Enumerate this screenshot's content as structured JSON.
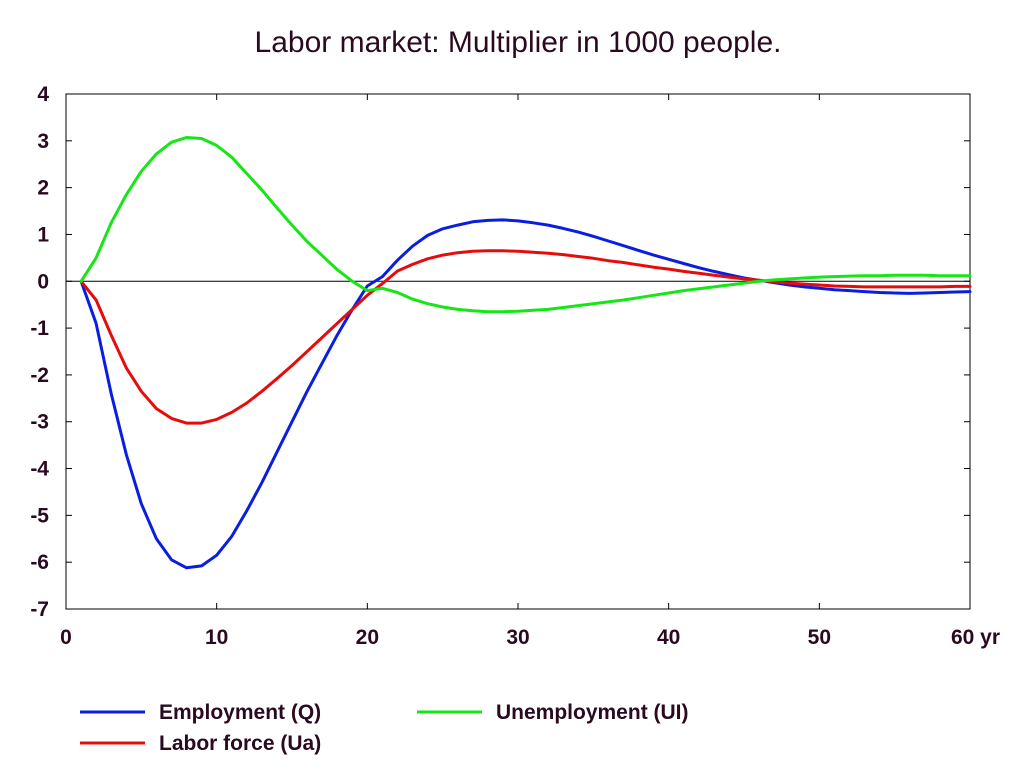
{
  "chart_data": {
    "type": "line",
    "title": "Labor market: Multiplier in 1000 people.",
    "xlabel": "",
    "ylabel": "",
    "xlim": [
      0,
      60
    ],
    "ylim": [
      -7,
      4
    ],
    "x_ticks": [
      0,
      10,
      20,
      30,
      40,
      50,
      60
    ],
    "x_tick_labels": [
      "0",
      "10",
      "20",
      "30",
      "40",
      "50",
      "60 yr"
    ],
    "y_ticks": [
      4,
      3,
      2,
      1,
      0,
      -1,
      -2,
      -3,
      -4,
      -5,
      -6,
      -7
    ],
    "y_tick_labels": [
      "4",
      "3",
      "2",
      "1",
      "0",
      "-1",
      "-2",
      "-3",
      "-4",
      "-5",
      "-6",
      "-7"
    ],
    "grid": false,
    "zero_line": true,
    "legend_position": "bottom",
    "x": [
      1,
      2,
      3,
      4,
      5,
      6,
      7,
      8,
      9,
      10,
      11,
      12,
      13,
      14,
      15,
      16,
      17,
      18,
      19,
      20,
      21,
      22,
      23,
      24,
      25,
      26,
      27,
      28,
      29,
      30,
      31,
      32,
      33,
      34,
      35,
      36,
      37,
      38,
      39,
      40,
      41,
      42,
      43,
      44,
      45,
      46,
      47,
      48,
      49,
      50,
      51,
      52,
      53,
      54,
      55,
      56,
      57,
      58,
      59,
      60
    ],
    "series": [
      {
        "name": "Employment (Q)",
        "color": "#0a1ee0",
        "values": [
          0,
          -0.9,
          -2.4,
          -3.7,
          -4.75,
          -5.5,
          -5.95,
          -6.12,
          -6.08,
          -5.85,
          -5.45,
          -4.9,
          -4.3,
          -3.65,
          -3.0,
          -2.35,
          -1.75,
          -1.15,
          -0.6,
          -0.1,
          0.1,
          0.45,
          0.75,
          0.98,
          1.12,
          1.2,
          1.27,
          1.3,
          1.31,
          1.29,
          1.25,
          1.2,
          1.13,
          1.05,
          0.96,
          0.86,
          0.76,
          0.66,
          0.56,
          0.47,
          0.38,
          0.29,
          0.21,
          0.14,
          0.07,
          0.02,
          -0.03,
          -0.08,
          -0.12,
          -0.15,
          -0.18,
          -0.2,
          -0.22,
          -0.24,
          -0.25,
          -0.26,
          -0.25,
          -0.24,
          -0.23,
          -0.22
        ]
      },
      {
        "name": "Labor force (Ua)",
        "color": "#e60c0c",
        "values": [
          0,
          -0.4,
          -1.15,
          -1.85,
          -2.35,
          -2.72,
          -2.93,
          -3.03,
          -3.03,
          -2.95,
          -2.8,
          -2.6,
          -2.35,
          -2.08,
          -1.8,
          -1.5,
          -1.2,
          -0.9,
          -0.6,
          -0.3,
          -0.05,
          0.22,
          0.36,
          0.48,
          0.56,
          0.61,
          0.64,
          0.65,
          0.65,
          0.64,
          0.62,
          0.6,
          0.57,
          0.53,
          0.49,
          0.44,
          0.4,
          0.35,
          0.3,
          0.26,
          0.21,
          0.17,
          0.13,
          0.09,
          0.05,
          0.02,
          -0.01,
          -0.04,
          -0.06,
          -0.08,
          -0.1,
          -0.11,
          -0.12,
          -0.12,
          -0.12,
          -0.12,
          -0.12,
          -0.12,
          -0.11,
          -0.11
        ]
      },
      {
        "name": "Unemployment (UI)",
        "color": "#16e616",
        "values": [
          0,
          0.5,
          1.25,
          1.85,
          2.35,
          2.72,
          2.97,
          3.07,
          3.05,
          2.9,
          2.65,
          2.3,
          1.95,
          1.57,
          1.2,
          0.85,
          0.55,
          0.25,
          0.0,
          -0.2,
          -0.15,
          -0.24,
          -0.38,
          -0.48,
          -0.55,
          -0.6,
          -0.63,
          -0.65,
          -0.65,
          -0.64,
          -0.62,
          -0.6,
          -0.56,
          -0.52,
          -0.48,
          -0.44,
          -0.4,
          -0.35,
          -0.3,
          -0.25,
          -0.2,
          -0.16,
          -0.12,
          -0.08,
          -0.04,
          0.0,
          0.03,
          0.05,
          0.07,
          0.09,
          0.1,
          0.11,
          0.12,
          0.12,
          0.13,
          0.13,
          0.13,
          0.12,
          0.12,
          0.12
        ]
      }
    ]
  }
}
